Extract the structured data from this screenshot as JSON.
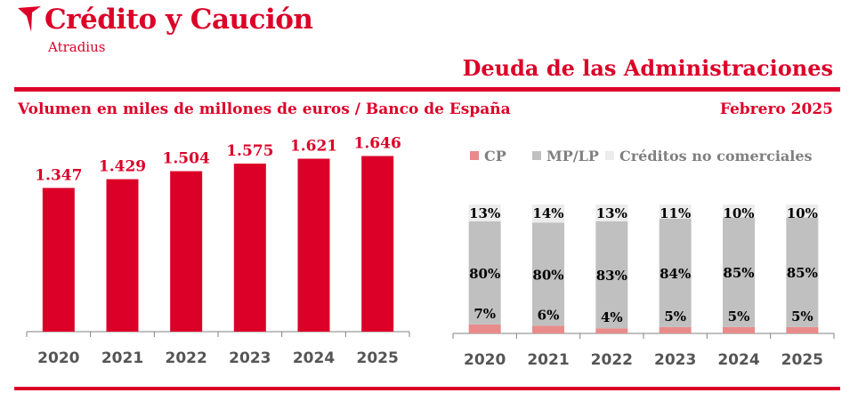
{
  "brand": {
    "name": "Crédito y Caución",
    "sub": "Atradius",
    "color": "#dc0028"
  },
  "page_title": "Deuda de las Administraciones",
  "subtitle": "Volumen en miles de millones de euros  / Banco de España",
  "date": "Febrero  2025",
  "colors": {
    "accent": "#dc0028",
    "bar": "#dc0028",
    "cp": "#e88b8b",
    "mplp": "#c0c0c0",
    "otros": "#ececec",
    "axis": "#808080",
    "year_label": "#555555"
  },
  "chart_data": [
    {
      "type": "bar",
      "title": "",
      "xlabel": "",
      "ylabel": "",
      "categories": [
        "2020",
        "2021",
        "2022",
        "2023",
        "2024",
        "2025"
      ],
      "values": [
        1347,
        1429,
        1504,
        1575,
        1621,
        1646
      ],
      "value_labels": [
        "1.347",
        "1.429",
        "1.504",
        "1.575",
        "1.621",
        "1.646"
      ],
      "ylim": [
        0,
        1800
      ],
      "grid": false
    },
    {
      "type": "bar",
      "stacked": true,
      "title": "",
      "legend_position": "top",
      "categories": [
        "2020",
        "2021",
        "2022",
        "2023",
        "2024",
        "2025"
      ],
      "series": [
        {
          "name": "CP",
          "values": [
            7,
            6,
            4,
            5,
            5,
            5
          ],
          "color": "#e88b8b"
        },
        {
          "name": "MP/LP",
          "values": [
            80,
            80,
            83,
            84,
            85,
            85
          ],
          "color": "#c0c0c0"
        },
        {
          "name": "Créditos no comerciales",
          "values": [
            13,
            14,
            13,
            11,
            10,
            10
          ],
          "color": "#ececec"
        }
      ],
      "labels": {
        "CP": [
          "7%",
          "6%",
          "4%",
          "5%",
          "5%",
          "5%"
        ],
        "MP/LP": [
          "80%",
          "80%",
          "83%",
          "84%",
          "85%",
          "85%"
        ],
        "Créditos no comerciales": [
          "13%",
          "14%",
          "13%",
          "11%",
          "10%",
          "10%"
        ]
      },
      "ylim": [
        0,
        100
      ],
      "grid": false
    }
  ]
}
